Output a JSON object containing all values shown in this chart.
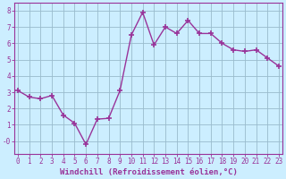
{
  "x_values": [
    0,
    1,
    2,
    3,
    4,
    5,
    6,
    7,
    8,
    9,
    10,
    11,
    12,
    13,
    14,
    15,
    16,
    17,
    18,
    19,
    20,
    21,
    22,
    23
  ],
  "y_values": [
    3.1,
    2.7,
    2.6,
    2.8,
    1.6,
    1.1,
    -0.2,
    1.35,
    1.4,
    3.1,
    6.5,
    7.9,
    5.9,
    7.0,
    6.6,
    7.4,
    6.6,
    6.6,
    6.0,
    5.6,
    5.5,
    5.6,
    5.1,
    4.6
  ],
  "line_color": "#993399",
  "marker": "+",
  "marker_size": 4,
  "bg_color": "#cceeff",
  "grid_color": "#99bbcc",
  "xlim": [
    -0.3,
    23.3
  ],
  "ylim": [
    -0.8,
    8.5
  ],
  "yticks": [
    0,
    1,
    2,
    3,
    4,
    5,
    6,
    7,
    8
  ],
  "ytick_labels": [
    "-0",
    "1",
    "2",
    "3",
    "4",
    "5",
    "6",
    "7",
    "8"
  ],
  "xticks": [
    0,
    1,
    2,
    3,
    4,
    5,
    6,
    7,
    8,
    9,
    10,
    11,
    12,
    13,
    14,
    15,
    16,
    17,
    18,
    19,
    20,
    21,
    22,
    23
  ],
  "xlabel": "Windchill (Refroidissement éolien,°C)",
  "axis_color": "#993399",
  "tick_color": "#993399",
  "label_color": "#993399",
  "font_size_axis": 5.5,
  "font_size_xlabel": 6.5,
  "line_width": 1.0
}
